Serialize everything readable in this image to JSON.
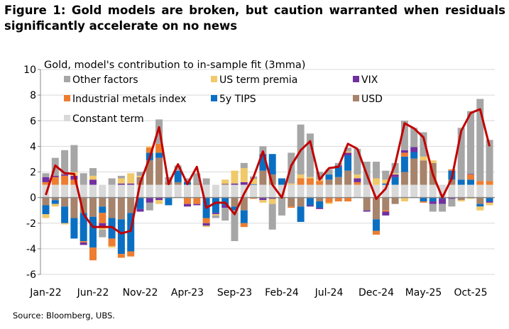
{
  "title": "Figure 1: Gold models are broken, but caution warranted when residuals significantly accelerate on no news",
  "source": "Source: Bloomberg, UBS.",
  "chart_data": {
    "type": "bar",
    "subtype": "stacked bar with line overlay",
    "title": "Gold, model's contribution to in-sample fit (3mma)",
    "xlabel": "",
    "ylabel": "",
    "ylim": [
      -6,
      10
    ],
    "yticks": [
      -6,
      -4,
      -2,
      0,
      2,
      4,
      6,
      8,
      10
    ],
    "grid": true,
    "legend_placement": "top-left inside",
    "x_tick_labels": [
      "Jan-22",
      "Jun-22",
      "Nov-22",
      "Apr-23",
      "Sep-23",
      "Feb-24",
      "Jul-24",
      "Dec-24",
      "May-25",
      "Oct-25"
    ],
    "x_tick_every_months": 5,
    "x_start": "Jan-22",
    "x_end": "Dec-25",
    "legend": [
      "Other factors",
      "US term premia",
      "VIX",
      "Industrial metals index",
      "5y TIPS",
      "USD",
      "Constant term"
    ],
    "series": [
      {
        "name": "Constant term",
        "color": "#d9d9d9",
        "values": [
          1,
          1,
          1,
          1,
          1,
          1,
          1,
          1,
          1,
          1,
          1,
          1,
          1,
          1,
          1,
          1,
          1,
          1,
          1,
          1,
          1,
          1,
          1,
          1,
          1,
          1,
          1,
          1,
          1,
          1,
          1,
          1,
          1,
          1,
          1,
          1,
          1,
          1,
          1,
          1,
          1,
          1,
          1,
          1,
          1,
          1,
          1,
          1
        ]
      },
      {
        "name": "USD",
        "color": "#a6836a",
        "values": [
          -0.6,
          -0.2,
          -0.7,
          -1.6,
          -1.2,
          -1.5,
          -0.7,
          -1.6,
          -1.7,
          -1.2,
          0.6,
          1.9,
          2.1,
          0.2,
          0.2,
          0,
          0.1,
          0,
          0,
          0.1,
          -0.7,
          -1.0,
          0,
          1.1,
          0.8,
          -0.1,
          -0.7,
          -0.7,
          0,
          -0.3,
          0.4,
          0.6,
          1.1,
          0,
          -1.0,
          -1.7,
          -1.0,
          -0.5,
          1.0,
          2.05,
          1.9,
          1.7,
          0,
          0.4,
          -0.2,
          0,
          -0.5,
          0
        ]
      },
      {
        "name": "5y TIPS",
        "color": "#0a6fc2",
        "values": [
          -0.7,
          -0.3,
          -1.3,
          -1.6,
          -2.2,
          -2.4,
          -0.5,
          -1.6,
          -2.7,
          -3.0,
          -0.9,
          0.6,
          0.4,
          -0.6,
          0.9,
          0.2,
          0,
          -1.6,
          -1.2,
          -0.6,
          -0.3,
          -1.0,
          0.05,
          1.3,
          1.6,
          0.5,
          0,
          -1.2,
          -0.6,
          -0.5,
          0.4,
          0.8,
          1.2,
          0,
          0,
          -0.9,
          0.1,
          0.6,
          1.2,
          0.5,
          -0.3,
          -0.3,
          -0.1,
          0.7,
          0.4,
          0.4,
          -0.2,
          -0.3
        ]
      },
      {
        "name": "Industrial metals index",
        "color": "#ed7d31",
        "values": [
          0.2,
          0.6,
          0.7,
          0.4,
          -0.1,
          -1.0,
          -0.8,
          -0.6,
          -0.3,
          -0.4,
          0,
          0.4,
          0.7,
          0,
          0,
          -0.5,
          -0.5,
          -0.4,
          0,
          0,
          0,
          -0.3,
          -0.1,
          0,
          0,
          0,
          -0.1,
          0.5,
          0.5,
          0.3,
          -0.4,
          -0.3,
          -0.3,
          0.2,
          0,
          -0.3,
          -0.1,
          0,
          0.3,
          0,
          -0.1,
          0,
          0,
          0.1,
          0,
          0.4,
          0.3,
          0.3
        ]
      },
      {
        "name": "VIX",
        "color": "#7030a0",
        "values": [
          0.4,
          0.1,
          0.1,
          0.3,
          -0.2,
          0.4,
          -0.3,
          0,
          0.1,
          0.1,
          -0.2,
          -0.4,
          -0.2,
          0,
          0,
          -0.2,
          -0.1,
          -0.2,
          -0.1,
          -0.2,
          0.1,
          0.2,
          0,
          -0.2,
          -0.1,
          0,
          0,
          0,
          -0.1,
          -0.1,
          0,
          0.1,
          0.2,
          0.3,
          -0.1,
          0,
          -0.3,
          0.2,
          0.2,
          0.4,
          0,
          -0.2,
          -0.4,
          -0.1,
          0,
          0.05,
          0,
          -0.1
        ]
      },
      {
        "name": "US term premia",
        "color": "#f0c96a",
        "values": [
          -0.3,
          -0.2,
          -0.1,
          0.3,
          0,
          0.3,
          -0.2,
          -0.1,
          0.4,
          0.8,
          0.1,
          0.1,
          -0.3,
          0,
          0,
          0,
          0,
          -0.1,
          -0.1,
          0.3,
          1.0,
          1.1,
          0.4,
          -0.2,
          -0.4,
          0,
          0.1,
          0.3,
          0.1,
          0.1,
          -0.1,
          0,
          0.1,
          0.3,
          0,
          0.5,
          0.3,
          0.1,
          -0.3,
          0,
          0.3,
          0.2,
          0,
          0,
          -0.1,
          -0.1,
          -0.3,
          -0.2
        ]
      },
      {
        "name": "Other factors",
        "color": "#a6a6a6",
        "values": [
          0.3,
          1.4,
          1.9,
          2.1,
          0.9,
          0.6,
          -0.6,
          0.5,
          0.2,
          0,
          0.3,
          -0.6,
          1.9,
          0.4,
          0.4,
          0.3,
          0.8,
          0.5,
          -0.2,
          -1.0,
          -2.4,
          0.4,
          0.2,
          0.6,
          -2.0,
          -1.3,
          2.4,
          3.9,
          3.4,
          0.6,
          0.4,
          0.2,
          0.3,
          2.0,
          1.8,
          1.3,
          0.7,
          0.8,
          2.3,
          1.5,
          1.9,
          -0.6,
          -0.6,
          -0.6,
          4.05,
          4.9,
          6.4,
          3.2
        ]
      }
    ],
    "line": {
      "color": "#c00000",
      "values": [
        0.2,
        2.5,
        1.9,
        1.85,
        -1.3,
        -2.3,
        -2.3,
        -2.3,
        -2.8,
        -2.6,
        1.15,
        3.1,
        5.5,
        1.05,
        2.6,
        1.05,
        2.4,
        -0.8,
        -0.4,
        -0.4,
        -1.3,
        0.3,
        1.6,
        3.6,
        1.0,
        0,
        2.5,
        3.7,
        4.4,
        1.4,
        2.3,
        2.4,
        4.2,
        3.8,
        1.8,
        -0.1,
        0.7,
        2.6,
        5.8,
        5.4,
        4.7,
        1.8,
        0,
        1.5,
        5.2,
        6.6,
        6.9,
        4.0
      ]
    }
  }
}
